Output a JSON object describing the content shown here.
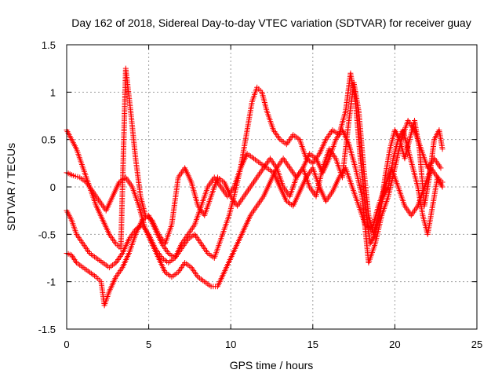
{
  "chart_data": {
    "type": "scatter",
    "title": "Day 162 of 2018, Sidereal Day-to-day VTEC variation (SDTVAR) for receiver guay",
    "xlabel": "GPS time / hours",
    "ylabel": "SDTVAR / TECUs",
    "xlim": [
      0,
      25
    ],
    "ylim": [
      -1.5,
      1.5
    ],
    "xticks": [
      "0",
      "5",
      "10",
      "15",
      "20",
      "25"
    ],
    "yticks": [
      "-1.5",
      "-1",
      "-0.5",
      "0",
      "0.5",
      "1",
      "1.5"
    ],
    "grid": true,
    "marker": "plus",
    "color": "#ff0000",
    "series": [
      {
        "x": [
          0,
          0.3,
          0.6,
          1.0,
          1.4,
          1.8,
          2.1,
          2.3,
          2.6,
          3.0,
          3.4,
          3.8,
          4.2,
          4.6,
          5.0,
          5.4,
          5.8,
          6.2,
          6.6,
          7.0,
          7.4,
          7.8,
          8.2,
          8.6,
          9.0,
          9.3,
          9.6,
          9.9,
          10.2,
          10.6,
          11.0,
          11.3,
          11.6,
          11.9,
          12.2,
          12.6,
          13.0,
          13.4,
          13.8,
          14.2,
          14.6,
          15.0,
          15.4,
          15.8,
          16.2,
          16.6,
          17.0,
          17.3,
          17.6,
          17.9,
          18.2,
          18.5,
          18.8,
          19.1,
          19.4,
          19.7,
          20.0,
          20.3,
          20.6,
          20.9,
          21.2,
          21.5,
          21.8,
          22.1,
          22.4,
          22.7,
          22.9
        ],
        "y": [
          -0.7,
          -0.72,
          -0.8,
          -0.85,
          -0.9,
          -0.95,
          -1.0,
          -1.25,
          -1.1,
          -0.95,
          -0.85,
          -0.7,
          -0.5,
          -0.35,
          -0.3,
          -0.45,
          -0.6,
          -0.7,
          -0.75,
          -0.65,
          -0.55,
          -0.5,
          -0.6,
          -0.7,
          -0.75,
          -0.6,
          -0.45,
          -0.3,
          -0.1,
          0.2,
          0.6,
          0.9,
          1.05,
          1.0,
          0.8,
          0.6,
          0.5,
          0.45,
          0.55,
          0.5,
          0.3,
          0.25,
          0.35,
          0.5,
          0.6,
          0.55,
          0.8,
          1.2,
          0.9,
          0.3,
          -0.2,
          -0.6,
          -0.5,
          -0.3,
          0.1,
          0.4,
          0.6,
          0.5,
          0.3,
          0.5,
          0.7,
          0.4,
          -0.2,
          0.1,
          0.5,
          0.6,
          0.4
        ]
      },
      {
        "x": [
          0,
          0.3,
          0.6,
          1.0,
          1.4,
          1.8,
          2.2,
          2.6,
          3.0,
          3.3,
          3.6,
          3.9,
          4.2,
          4.5,
          4.8,
          5.2,
          5.6,
          6.0,
          6.4,
          6.8,
          7.2,
          7.6,
          8.0,
          8.4,
          8.8,
          9.2,
          9.6,
          10.0,
          10.4,
          10.8,
          11.2,
          11.6,
          12.0,
          12.4,
          12.8,
          13.2,
          13.6,
          14.0,
          14.4,
          14.8,
          15.2,
          15.6,
          16.0,
          16.4,
          16.8,
          17.2,
          17.5,
          17.8,
          18.1,
          18.4,
          18.7,
          19.0,
          19.3,
          19.6,
          19.9,
          20.2,
          20.5,
          20.8,
          21.1,
          21.4,
          21.7,
          22.0,
          22.3,
          22.6,
          22.9
        ],
        "y": [
          0.6,
          0.5,
          0.4,
          0.2,
          0.0,
          -0.2,
          -0.35,
          -0.5,
          -0.6,
          -0.65,
          1.25,
          0.8,
          0.3,
          -0.1,
          -0.3,
          -0.35,
          -0.5,
          -0.6,
          -0.4,
          0.1,
          0.2,
          0.05,
          -0.2,
          -0.3,
          -0.1,
          0.1,
          0.05,
          -0.1,
          -0.2,
          -0.1,
          0.0,
          0.1,
          0.2,
          0.3,
          0.2,
          0.0,
          -0.1,
          0.1,
          0.2,
          0.0,
          -0.1,
          0.2,
          0.4,
          0.3,
          0.1,
          0.7,
          1.1,
          0.8,
          0.2,
          -0.3,
          -0.5,
          -0.3,
          -0.1,
          0.0,
          0.3,
          0.5,
          0.6,
          0.4,
          0.2,
          0.0,
          -0.3,
          -0.5,
          -0.2,
          0.1,
          0.0
        ]
      },
      {
        "x": [
          0,
          0.3,
          0.6,
          1.0,
          1.4,
          1.8,
          2.2,
          2.6,
          3.0,
          3.4,
          3.8,
          4.2,
          4.6,
          5.0,
          5.4,
          5.8,
          6.2,
          6.6,
          7.0,
          7.4,
          7.8,
          8.2,
          8.6,
          9.0,
          9.4,
          9.8,
          10.2,
          10.6,
          11.0,
          11.4,
          11.8,
          12.2,
          12.6,
          13.0,
          13.4,
          13.8,
          14.2,
          14.6,
          15.0,
          15.4,
          15.8,
          16.2,
          16.6,
          17.0,
          17.4,
          17.8,
          18.2,
          18.6,
          19.0,
          19.4,
          19.8,
          20.2,
          20.6,
          21.0,
          21.4,
          21.8,
          22.2,
          22.6,
          22.9
        ],
        "y": [
          -0.25,
          -0.35,
          -0.5,
          -0.6,
          -0.7,
          -0.75,
          -0.8,
          -0.85,
          -0.8,
          -0.7,
          -0.55,
          -0.45,
          -0.4,
          -0.5,
          -0.65,
          -0.75,
          -0.8,
          -0.75,
          -0.6,
          -0.5,
          -0.4,
          -0.2,
          0.0,
          0.1,
          0.0,
          -0.1,
          0.0,
          0.2,
          0.35,
          0.3,
          0.25,
          0.2,
          0.15,
          0.0,
          -0.15,
          -0.2,
          -0.05,
          0.1,
          0.2,
          0.0,
          -0.15,
          -0.05,
          0.1,
          0.2,
          0.0,
          -0.2,
          -0.4,
          -0.45,
          -0.2,
          0.0,
          0.2,
          0.0,
          -0.2,
          -0.3,
          -0.2,
          0.0,
          0.2,
          0.1,
          0.05
        ]
      },
      {
        "x": [
          0,
          0.4,
          0.8,
          1.2,
          1.6,
          2.0,
          2.4,
          2.8,
          3.2,
          3.6,
          4.0,
          4.4,
          4.8,
          5.2,
          5.6,
          6.0,
          6.4,
          6.8,
          7.2,
          7.6,
          8.0,
          8.4,
          8.8,
          9.2,
          9.6,
          10.0,
          10.4,
          10.8,
          11.2,
          11.6,
          12.0,
          12.4,
          12.8,
          13.2,
          13.6,
          14.0,
          14.4,
          14.8,
          15.2,
          15.6,
          16.0,
          16.4,
          16.8,
          17.2,
          17.6,
          18.0,
          18.4,
          18.8,
          19.2,
          19.6,
          20.0,
          20.4,
          20.8,
          21.2,
          21.6,
          22.0,
          22.4,
          22.8
        ],
        "y": [
          0.15,
          0.12,
          0.1,
          0.05,
          -0.05,
          -0.15,
          -0.25,
          -0.1,
          0.05,
          0.1,
          0.0,
          -0.2,
          -0.45,
          -0.6,
          -0.75,
          -0.9,
          -0.95,
          -0.9,
          -0.8,
          -0.85,
          -0.95,
          -1.0,
          -1.05,
          -1.05,
          -0.9,
          -0.75,
          -0.6,
          -0.45,
          -0.3,
          -0.2,
          -0.1,
          0.05,
          0.2,
          0.3,
          0.2,
          0.1,
          0.2,
          0.35,
          0.3,
          0.15,
          0.3,
          0.5,
          0.6,
          0.45,
          0.2,
          -0.1,
          -0.8,
          -0.6,
          -0.3,
          -0.1,
          0.2,
          0.5,
          0.7,
          0.6,
          0.4,
          0.2,
          0.3,
          0.2
        ]
      }
    ]
  }
}
